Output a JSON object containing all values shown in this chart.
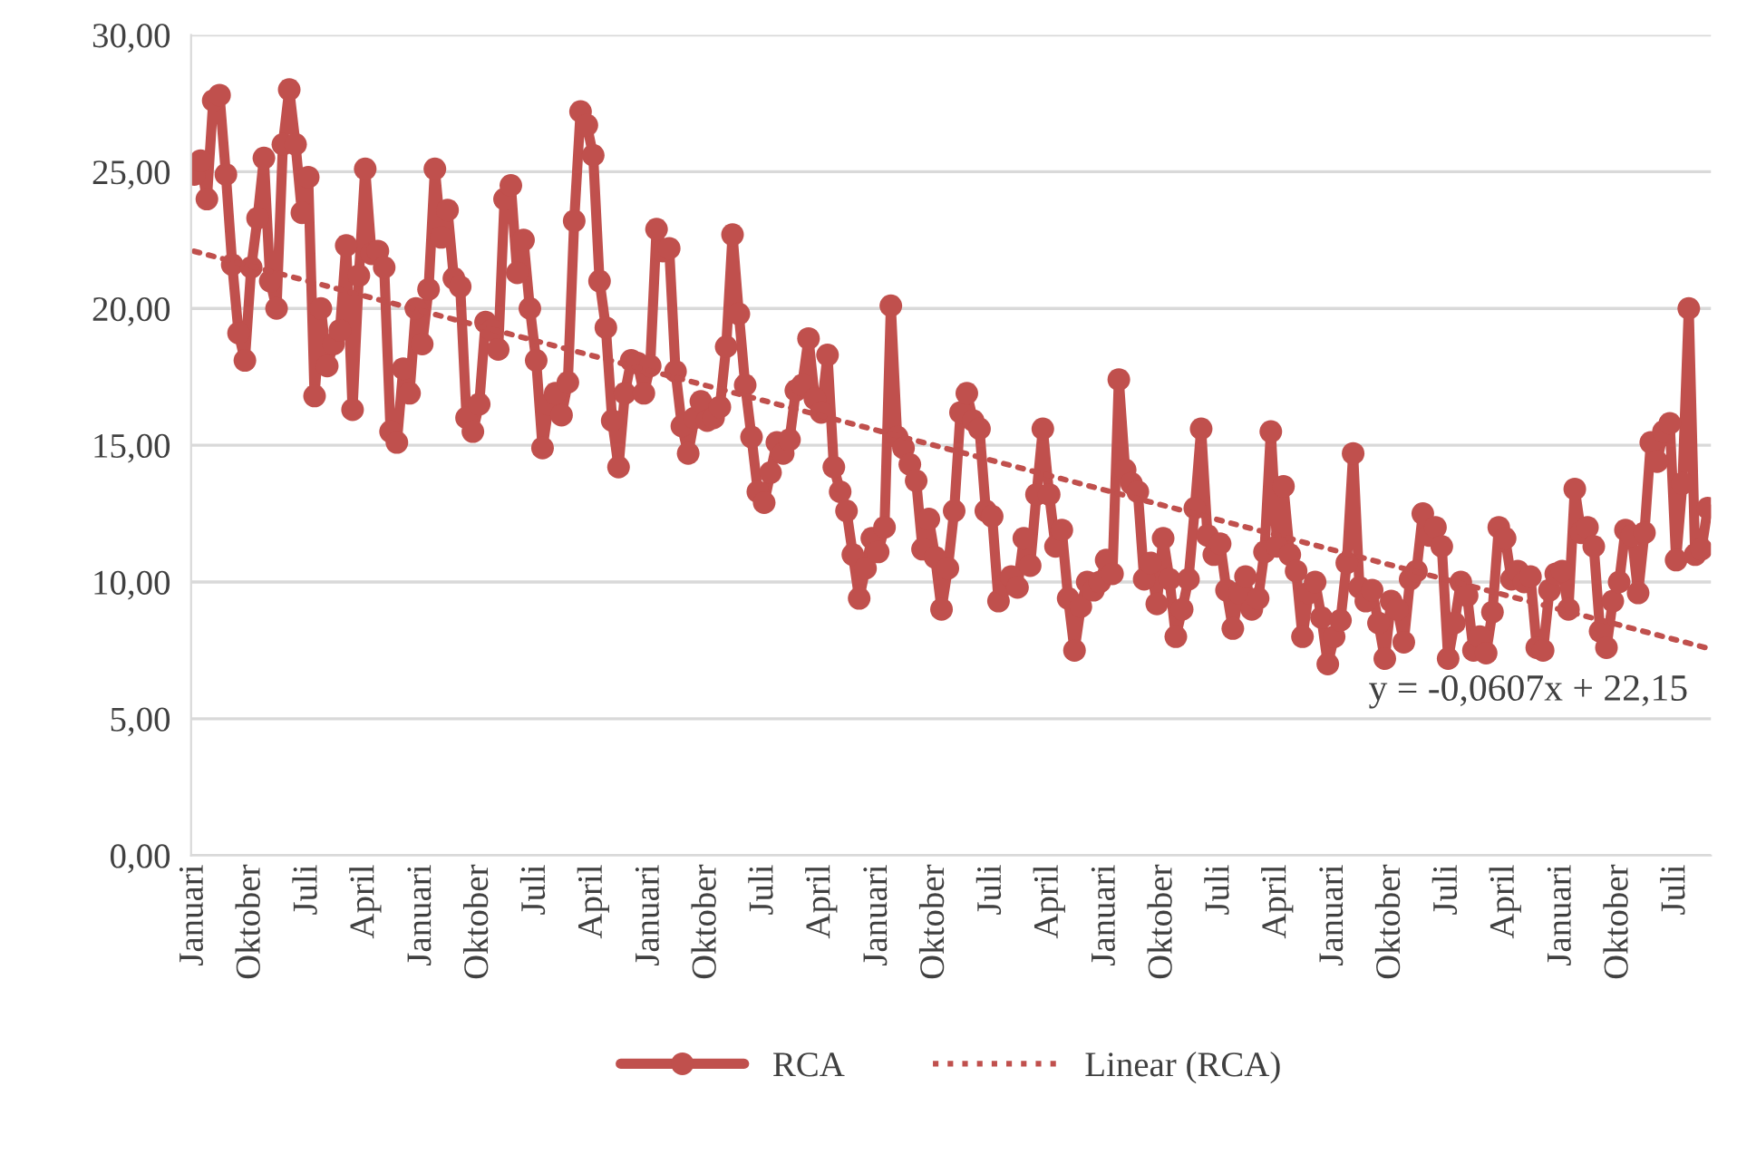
{
  "chart_data": {
    "type": "line",
    "categories": [
      "Januari",
      null,
      null,
      null,
      null,
      null,
      null,
      null,
      null,
      "Oktober",
      null,
      null,
      null,
      null,
      null,
      null,
      null,
      null,
      "Juli",
      null,
      null,
      null,
      null,
      null,
      null,
      null,
      null,
      "April",
      null,
      null,
      null,
      null,
      null,
      null,
      null,
      null,
      "Januari",
      null,
      null,
      null,
      null,
      null,
      null,
      null,
      null,
      "Oktober",
      null,
      null,
      null,
      null,
      null,
      null,
      null,
      null,
      "Juli",
      null,
      null,
      null,
      null,
      null,
      null,
      null,
      null,
      "April",
      null,
      null,
      null,
      null,
      null,
      null,
      null,
      null,
      "Januari",
      null,
      null,
      null,
      null,
      null,
      null,
      null,
      null,
      "Oktober",
      null,
      null,
      null,
      null,
      null,
      null,
      null,
      null,
      "Juli",
      null,
      null,
      null,
      null,
      null,
      null,
      null,
      null,
      "April",
      null,
      null,
      null,
      null,
      null,
      null,
      null,
      null,
      "Januari",
      null,
      null,
      null,
      null,
      null,
      null,
      null,
      null,
      "Oktober",
      null,
      null,
      null,
      null,
      null,
      null,
      null,
      null,
      "Juli",
      null,
      null,
      null,
      null,
      null,
      null,
      null,
      null,
      "April",
      null,
      null,
      null,
      null,
      null,
      null,
      null,
      null,
      "Januari",
      null,
      null,
      null,
      null,
      null,
      null,
      null,
      null,
      "Oktober",
      null,
      null,
      null,
      null,
      null,
      null,
      null,
      null,
      "Juli",
      null,
      null,
      null,
      null,
      null,
      null,
      null,
      null,
      "April",
      null,
      null,
      null,
      null,
      null,
      null,
      null,
      null,
      "Januari",
      null,
      null,
      null,
      null,
      null,
      null,
      null,
      null,
      "Oktober",
      null,
      null,
      null,
      null,
      null,
      null,
      null,
      null,
      "Juli",
      null,
      null,
      null,
      null,
      null,
      null,
      null,
      null,
      "April",
      null,
      null,
      null,
      null,
      null,
      null,
      null,
      null,
      "Januari",
      null,
      null,
      null,
      null,
      null,
      null,
      null,
      null,
      "Oktober",
      null,
      null,
      null,
      null,
      null,
      null,
      null,
      null,
      "Juli",
      null,
      null,
      null,
      null,
      null
    ],
    "series": [
      {
        "name": "RCA",
        "color": "#c0504d",
        "marker": "circle",
        "line_style": "solid",
        "values": [
          24.9,
          25.4,
          24.0,
          27.6,
          27.8,
          24.9,
          21.6,
          19.1,
          18.1,
          21.5,
          23.3,
          25.5,
          21.0,
          20.0,
          26.0,
          28.0,
          26.0,
          23.5,
          24.8,
          16.8,
          20.0,
          17.9,
          18.7,
          19.2,
          22.3,
          16.3,
          21.2,
          25.1,
          22.0,
          22.1,
          21.5,
          15.5,
          15.1,
          17.8,
          16.9,
          20.0,
          18.7,
          20.7,
          25.1,
          22.6,
          23.6,
          21.1,
          20.8,
          16.0,
          15.5,
          16.5,
          19.5,
          19.2,
          18.5,
          24.0,
          24.5,
          21.3,
          22.5,
          20.0,
          18.1,
          14.9,
          16.5,
          16.9,
          16.1,
          17.3,
          23.2,
          27.2,
          26.7,
          25.6,
          21.0,
          19.3,
          15.9,
          14.2,
          16.9,
          18.1,
          18.0,
          16.9,
          17.9,
          22.9,
          22.1,
          22.2,
          17.7,
          15.7,
          14.7,
          16.0,
          16.6,
          15.9,
          16.0,
          16.4,
          18.6,
          22.7,
          19.8,
          17.2,
          15.3,
          13.3,
          12.9,
          14.0,
          15.1,
          14.7,
          15.2,
          17.0,
          17.2,
          18.9,
          16.7,
          16.2,
          18.3,
          14.2,
          13.3,
          12.6,
          11.0,
          9.4,
          10.5,
          11.6,
          11.1,
          12.0,
          20.1,
          15.3,
          14.9,
          14.3,
          13.7,
          11.2,
          12.3,
          10.9,
          9.0,
          10.5,
          12.6,
          16.2,
          16.9,
          15.9,
          15.6,
          12.6,
          12.4,
          9.3,
          9.9,
          10.2,
          9.8,
          11.6,
          10.6,
          13.2,
          15.6,
          13.2,
          11.3,
          11.9,
          9.4,
          7.5,
          9.1,
          10.0,
          9.7,
          10.0,
          10.8,
          10.3,
          17.4,
          14.1,
          13.6,
          13.3,
          10.1,
          10.7,
          9.2,
          11.6,
          10.1,
          8.0,
          9.0,
          10.1,
          12.7,
          15.6,
          11.7,
          11.0,
          11.4,
          9.7,
          8.3,
          9.6,
          10.2,
          9.0,
          9.4,
          11.1,
          15.5,
          11.3,
          13.5,
          11.0,
          10.4,
          8.0,
          9.6,
          10.0,
          8.7,
          7.0,
          8.0,
          8.6,
          10.7,
          14.7,
          9.8,
          9.3,
          9.7,
          8.5,
          7.2,
          9.3,
          9.0,
          7.8,
          10.1,
          10.4,
          12.5,
          11.7,
          12.0,
          11.3,
          7.2,
          8.5,
          10.0,
          9.5,
          7.5,
          8.0,
          7.4,
          8.9,
          12.0,
          11.6,
          10.1,
          10.4,
          10.0,
          10.2,
          7.6,
          7.5,
          9.7,
          10.3,
          10.4,
          9.0,
          13.4,
          11.8,
          12.0,
          11.3,
          8.2,
          7.6,
          9.3,
          10.0,
          11.9,
          11.7,
          9.6,
          11.8,
          15.1,
          14.4,
          15.5,
          15.8,
          10.8,
          13.6,
          20.0,
          11.0,
          11.2,
          12.7
        ]
      },
      {
        "name": "Linear (RCA)",
        "color": "#c0504d",
        "marker": "none",
        "line_style": "dotted",
        "values": [
          22.09,
          null,
          null,
          null,
          null,
          null,
          null,
          null,
          null,
          null,
          null,
          null,
          null,
          null,
          null,
          null,
          null,
          null,
          null,
          null,
          null,
          null,
          null,
          null,
          null,
          null,
          null,
          null,
          null,
          null,
          null,
          null,
          null,
          null,
          null,
          null,
          null,
          null,
          null,
          null,
          null,
          null,
          null,
          null,
          null,
          null,
          null,
          null,
          null,
          null,
          null,
          null,
          null,
          null,
          null,
          null,
          null,
          null,
          null,
          null,
          null,
          null,
          null,
          null,
          null,
          null,
          null,
          null,
          null,
          null,
          null,
          null,
          null,
          null,
          null,
          null,
          null,
          null,
          null,
          null,
          null,
          null,
          null,
          null,
          null,
          null,
          null,
          null,
          null,
          null,
          null,
          null,
          null,
          null,
          null,
          null,
          null,
          null,
          null,
          null,
          null,
          null,
          null,
          null,
          null,
          null,
          null,
          null,
          null,
          null,
          null,
          null,
          null,
          null,
          null,
          null,
          null,
          null,
          null,
          null,
          null,
          null,
          null,
          null,
          null,
          null,
          null,
          null,
          null,
          null,
          null,
          null,
          null,
          null,
          null,
          null,
          null,
          null,
          null,
          null,
          null,
          null,
          null,
          null,
          null,
          null,
          null,
          null,
          null,
          null,
          null,
          null,
          null,
          null,
          null,
          null,
          null,
          null,
          null,
          null,
          null,
          null,
          null,
          null,
          null,
          null,
          null,
          null,
          null,
          null,
          null,
          null,
          null,
          null,
          null,
          null,
          null,
          null,
          null,
          null,
          null,
          null,
          null,
          null,
          null,
          null,
          null,
          null,
          null,
          null,
          null,
          null,
          null,
          null,
          null,
          null,
          null,
          null,
          null,
          null,
          null,
          null,
          null,
          null,
          null,
          null,
          null,
          null,
          null,
          null,
          null,
          null,
          null,
          null,
          null,
          null,
          null,
          null,
          null,
          null,
          null,
          null,
          null,
          null,
          null,
          null,
          null,
          null,
          null,
          null,
          null,
          null,
          null,
          null,
          null,
          null,
          null,
          null,
          null,
          7.58
        ]
      }
    ],
    "ylim": [
      0,
      30
    ],
    "yticks": [
      {
        "value": 0,
        "label": "0,00"
      },
      {
        "value": 5,
        "label": "5,00"
      },
      {
        "value": 10,
        "label": "10,00"
      },
      {
        "value": 15,
        "label": "15,00"
      },
      {
        "value": 20,
        "label": "20,00"
      },
      {
        "value": 25,
        "label": "25,00"
      },
      {
        "value": 30,
        "label": "30,00"
      }
    ],
    "grid": "y",
    "legend": "bottom",
    "annotations": [
      "y = -0,0607x + 22,15"
    ]
  }
}
